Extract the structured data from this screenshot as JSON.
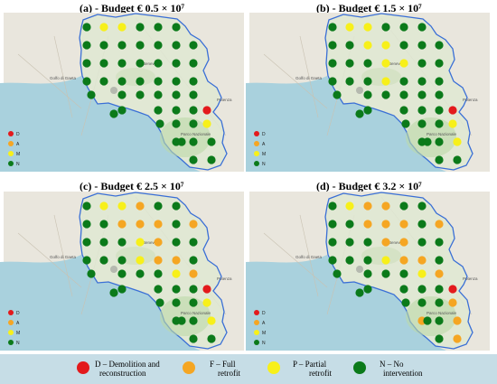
{
  "panels": [
    {
      "id": "a",
      "title": "(a) - Budget € 0.5 × 10⁷"
    },
    {
      "id": "b",
      "title": "(b) - Budget € 1.5 × 10⁷"
    },
    {
      "id": "c",
      "title": "(c) - Budget € 2.5 × 10⁷"
    },
    {
      "id": "d",
      "title": "(d) - Budget € 3.2 × 10⁷"
    }
  ],
  "map_labels": {
    "gulf": "Golfo di Gaeta",
    "benevento": "Benevento",
    "potenza": "Potenza",
    "park": "Parco Nazionale"
  },
  "small_legend": [
    "D",
    "A",
    "M",
    "N"
  ],
  "colors": {
    "D": "#e31a1c",
    "F": "#f5a623",
    "P": "#f7f01a",
    "N": "#0b7a1a"
  },
  "legend": {
    "items": [
      {
        "key": "D",
        "label_line1": "D – Demolition and",
        "label_line2": "reconstruction"
      },
      {
        "key": "F",
        "label_line1": "F – Full",
        "label_line2": "retrofit"
      },
      {
        "key": "P",
        "label_line1": "P – Partial",
        "label_line2": "retrofit"
      },
      {
        "key": "N",
        "label_line1": "N – No",
        "label_line2": "intervention"
      }
    ]
  },
  "grid_points": [
    [
      96,
      30
    ],
    [
      115,
      30
    ],
    [
      135,
      30
    ],
    [
      155,
      30
    ],
    [
      175,
      30
    ],
    [
      195,
      30
    ],
    [
      96,
      50
    ],
    [
      115,
      50
    ],
    [
      135,
      50
    ],
    [
      155,
      50
    ],
    [
      175,
      50
    ],
    [
      195,
      50
    ],
    [
      214,
      50
    ],
    [
      96,
      70
    ],
    [
      115,
      70
    ],
    [
      135,
      70
    ],
    [
      155,
      70
    ],
    [
      175,
      70
    ],
    [
      195,
      70
    ],
    [
      214,
      70
    ],
    [
      96,
      90
    ],
    [
      115,
      90
    ],
    [
      135,
      90
    ],
    [
      155,
      90
    ],
    [
      175,
      90
    ],
    [
      195,
      90
    ],
    [
      214,
      90
    ],
    [
      101,
      105
    ],
    [
      135,
      105
    ],
    [
      155,
      105
    ],
    [
      175,
      105
    ],
    [
      195,
      105
    ],
    [
      214,
      105
    ],
    [
      135,
      122
    ],
    [
      175,
      122
    ],
    [
      195,
      122
    ],
    [
      214,
      122
    ],
    [
      229,
      122
    ],
    [
      177,
      137
    ],
    [
      195,
      137
    ],
    [
      214,
      137
    ],
    [
      229,
      137
    ],
    [
      195,
      157
    ],
    [
      214,
      157
    ],
    [
      234,
      157
    ],
    [
      214,
      177
    ],
    [
      234,
      177
    ],
    [
      126,
      126
    ],
    [
      201,
      157
    ]
  ],
  "panel_states": {
    "a": {
      "D": [
        37
      ],
      "F": [],
      "P": [
        1,
        2,
        41
      ]
    },
    "b": {
      "D": [
        37
      ],
      "F": [],
      "P": [
        1,
        2,
        8,
        9,
        16,
        17,
        23,
        41,
        44
      ]
    },
    "c": {
      "D": [
        37
      ],
      "F": [
        3,
        8,
        9,
        10,
        12,
        17,
        24,
        25,
        32
      ],
      "P": [
        1,
        2,
        16,
        23,
        31,
        41,
        44
      ]
    },
    "d": {
      "D": [
        37
      ],
      "F": [
        2,
        3,
        8,
        9,
        10,
        12,
        16,
        17,
        24,
        25,
        32,
        41,
        42,
        44,
        46
      ],
      "P": [
        1,
        23,
        31
      ]
    }
  }
}
